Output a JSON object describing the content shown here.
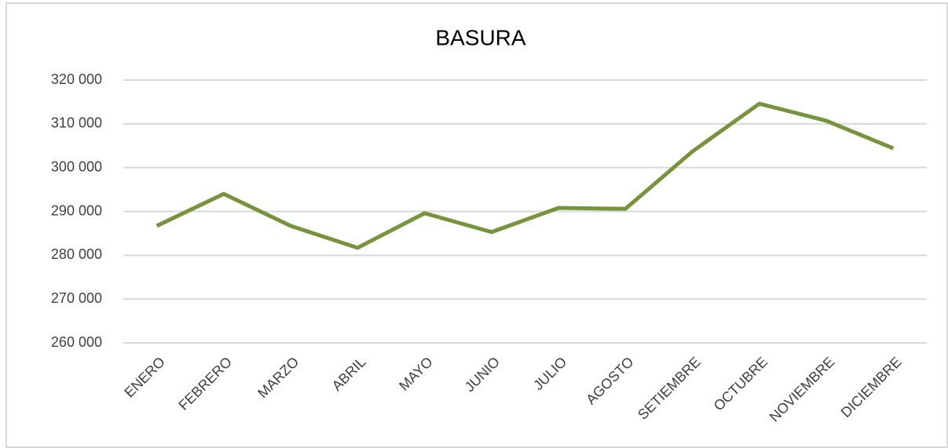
{
  "chart_data": {
    "type": "line",
    "title": "BASURA",
    "categories": [
      "ENERO",
      "FEBRERO",
      "MARZO",
      "ABRIL",
      "MAYO",
      "JUNIO",
      "JULIO",
      "AGOSTO",
      "SETIEMBRE",
      "OCTUBRE",
      "NOVIEMBRE",
      "DICIEMBRE"
    ],
    "values": [
      286700,
      294000,
      286700,
      281700,
      289600,
      285300,
      290800,
      290600,
      303700,
      314600,
      310700,
      304400
    ],
    "color": "#77933c",
    "ylim": [
      260000,
      320000
    ],
    "yticks": [
      {
        "value": 260000,
        "label": "260 000"
      },
      {
        "value": 270000,
        "label": "270 000"
      },
      {
        "value": 280000,
        "label": "280 000"
      },
      {
        "value": 290000,
        "label": "290 000"
      },
      {
        "value": 300000,
        "label": "300 000"
      },
      {
        "value": 310000,
        "label": "310 000"
      },
      {
        "value": 320000,
        "label": "320 000"
      }
    ],
    "grid": true
  }
}
